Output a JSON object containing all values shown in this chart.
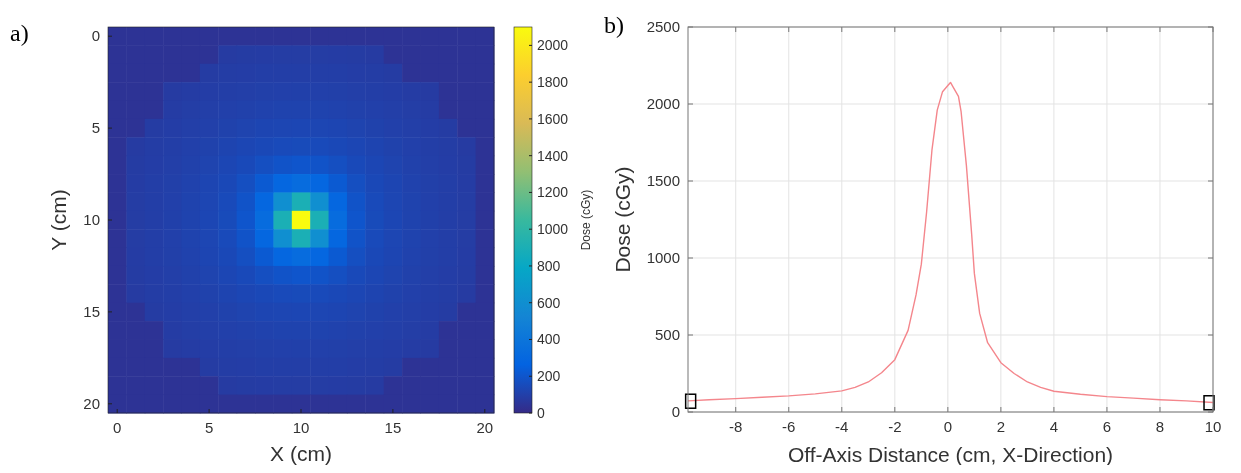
{
  "chart_data": [
    {
      "type": "heatmap",
      "title": "a)",
      "xlabel": "X (cm)",
      "ylabel": "Y (cm)",
      "clabel": "Dose (cGy)",
      "categories": [
        "0",
        null,
        null,
        null,
        null,
        "5",
        null,
        null,
        null,
        null,
        "10",
        null,
        null,
        null,
        null,
        "15",
        null,
        null,
        null,
        null,
        "20"
      ],
      "y_categories": [
        "0",
        null,
        null,
        null,
        null,
        "5",
        null,
        null,
        null,
        null,
        "10",
        null,
        null,
        null,
        null,
        "15",
        null,
        null,
        null,
        null,
        "20"
      ],
      "clim": [
        0,
        2100
      ],
      "cticks": [
        0,
        200,
        400,
        600,
        800,
        1000,
        1200,
        1400,
        1600,
        1800,
        2000
      ],
      "cells": [
        [
          40,
          40,
          40,
          40,
          40,
          40,
          40,
          40,
          40,
          40,
          40,
          40,
          40,
          40,
          40,
          40,
          40,
          40,
          40,
          40,
          40
        ],
        [
          40,
          40,
          40,
          40,
          40,
          40,
          80,
          83,
          85,
          86,
          86,
          86,
          85,
          83,
          80,
          40,
          40,
          40,
          40,
          40,
          40
        ],
        [
          40,
          40,
          40,
          40,
          40,
          83,
          87,
          89,
          92,
          93,
          94,
          93,
          92,
          89,
          87,
          83,
          40,
          40,
          40,
          40,
          40
        ],
        [
          40,
          40,
          40,
          80,
          85,
          89,
          93,
          97,
          100,
          102,
          103,
          102,
          100,
          97,
          93,
          89,
          85,
          80,
          40,
          40,
          40
        ],
        [
          40,
          40,
          40,
          85,
          90,
          96,
          101,
          106,
          110,
          114,
          115,
          114,
          110,
          106,
          101,
          96,
          90,
          85,
          40,
          40,
          40
        ],
        [
          40,
          40,
          83,
          89,
          96,
          102,
          109,
          118,
          124,
          128,
          130,
          128,
          124,
          118,
          109,
          102,
          96,
          89,
          83,
          40,
          40
        ],
        [
          40,
          80,
          87,
          93,
          101,
          109,
          120,
          130,
          140,
          148,
          150,
          148,
          140,
          130,
          120,
          109,
          101,
          93,
          87,
          80,
          40
        ],
        [
          40,
          83,
          89,
          97,
          106,
          118,
          130,
          145,
          170,
          190,
          200,
          190,
          170,
          145,
          130,
          118,
          106,
          97,
          89,
          83,
          40
        ],
        [
          40,
          85,
          92,
          100,
          110,
          124,
          140,
          170,
          220,
          290,
          330,
          290,
          220,
          170,
          140,
          124,
          110,
          100,
          92,
          85,
          40
        ],
        [
          40,
          86,
          93,
          102,
          114,
          128,
          148,
          190,
          290,
          600,
          900,
          600,
          290,
          190,
          148,
          128,
          114,
          102,
          93,
          86,
          40
        ],
        [
          40,
          86,
          94,
          103,
          115,
          130,
          150,
          200,
          330,
          900,
          2100,
          900,
          330,
          200,
          150,
          130,
          115,
          103,
          94,
          86,
          40
        ],
        [
          40,
          86,
          93,
          102,
          114,
          128,
          148,
          190,
          290,
          600,
          900,
          600,
          290,
          190,
          148,
          128,
          114,
          102,
          93,
          86,
          40
        ],
        [
          40,
          85,
          92,
          100,
          110,
          124,
          140,
          170,
          220,
          290,
          330,
          290,
          220,
          170,
          140,
          124,
          110,
          100,
          92,
          85,
          40
        ],
        [
          40,
          83,
          89,
          97,
          106,
          118,
          130,
          145,
          170,
          190,
          200,
          190,
          170,
          145,
          130,
          118,
          106,
          97,
          89,
          83,
          40
        ],
        [
          40,
          80,
          87,
          93,
          101,
          109,
          120,
          130,
          140,
          148,
          150,
          148,
          140,
          130,
          120,
          109,
          101,
          93,
          87,
          80,
          40
        ],
        [
          40,
          40,
          83,
          89,
          96,
          102,
          109,
          118,
          124,
          128,
          130,
          128,
          124,
          118,
          109,
          102,
          96,
          89,
          83,
          40,
          40
        ],
        [
          40,
          40,
          40,
          85,
          90,
          96,
          101,
          106,
          110,
          114,
          115,
          114,
          110,
          106,
          101,
          96,
          90,
          85,
          40,
          40,
          40
        ],
        [
          40,
          40,
          40,
          80,
          85,
          89,
          93,
          97,
          100,
          102,
          103,
          102,
          100,
          97,
          93,
          89,
          85,
          80,
          40,
          40,
          40
        ],
        [
          40,
          40,
          40,
          40,
          40,
          83,
          87,
          89,
          92,
          93,
          94,
          93,
          92,
          89,
          87,
          83,
          40,
          40,
          40,
          40,
          40
        ],
        [
          40,
          40,
          40,
          40,
          40,
          40,
          80,
          83,
          85,
          86,
          86,
          86,
          85,
          83,
          80,
          40,
          40,
          40,
          40,
          40,
          40
        ],
        [
          40,
          40,
          40,
          40,
          40,
          40,
          40,
          40,
          40,
          40,
          40,
          40,
          40,
          40,
          40,
          40,
          40,
          40,
          40,
          40,
          40
        ]
      ]
    },
    {
      "type": "line",
      "title": "b)",
      "xlabel": "Off-Axis Distance (cm, X-Direction)",
      "ylabel": "Dose (cGy)",
      "xlim": [
        -9.8,
        10
      ],
      "xticks": [
        -8,
        -6,
        -4,
        -2,
        0,
        2,
        4,
        6,
        8,
        10
      ],
      "ylim": [
        0,
        2500
      ],
      "yticks": [
        0,
        500,
        1000,
        1500,
        2000,
        2500
      ],
      "grid": true,
      "series": [
        {
          "type": "line",
          "color": "#f4868c",
          "marker": "none",
          "x": [
            -9.8,
            -9,
            -8,
            -7,
            -6,
            -5,
            -4,
            -3.5,
            -3,
            -2.5,
            -2,
            -1.5,
            -1.2,
            -1,
            -0.8,
            -0.6,
            -0.4,
            -0.2,
            0,
            0.1,
            0.2,
            0.4,
            0.5,
            0.7,
            0.9,
            1,
            1.2,
            1.5,
            2,
            2.5,
            3,
            3.5,
            4,
            5,
            6,
            7,
            8,
            9,
            10
          ],
          "values": [
            72,
            80,
            87,
            96,
            105,
            118,
            137,
            160,
            195,
            255,
            340,
            530,
            760,
            960,
            1300,
            1700,
            1960,
            2080,
            2120,
            2140,
            2110,
            2050,
            1950,
            1600,
            1150,
            900,
            640,
            450,
            320,
            250,
            195,
            160,
            135,
            115,
            100,
            90,
            80,
            72,
            62
          ]
        },
        {
          "type": "scatter",
          "color": "#000000",
          "marker": "square",
          "x": [
            -9.7,
            9.85
          ],
          "values": [
            70,
            60
          ]
        }
      ]
    }
  ]
}
